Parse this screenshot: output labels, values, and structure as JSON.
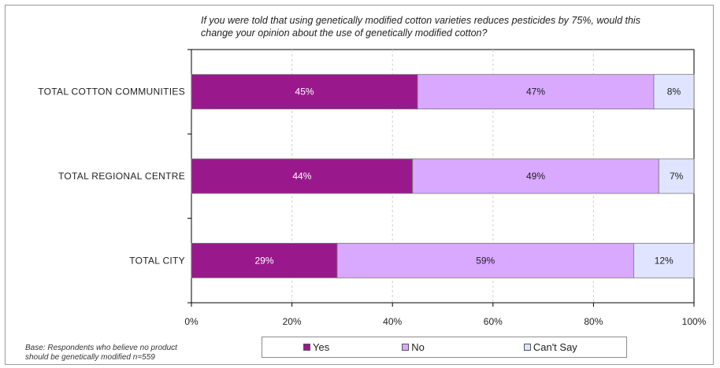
{
  "chart_data": {
    "type": "bar",
    "orientation": "horizontal",
    "stacked": true,
    "title": "If you were told that using genetically modified cotton varieties reduces pesticides by 75%, would this change your opinion about the use of genetically modified cotton?",
    "categories": [
      "TOTAL COTTON COMMUNITIES",
      "TOTAL REGIONAL CENTRE",
      "TOTAL CITY"
    ],
    "series": [
      {
        "name": "Yes",
        "values": [
          45,
          44,
          29
        ],
        "labels": [
          "45%",
          "44%",
          "29%"
        ],
        "color": "#99198c",
        "label_color": "#ffffff"
      },
      {
        "name": "No",
        "values": [
          47,
          49,
          59
        ],
        "labels": [
          "47%",
          "49%",
          "59%"
        ],
        "color": "#d9a8ff",
        "label_color": "#222222"
      },
      {
        "name": "Can't Say",
        "values": [
          8,
          7,
          12
        ],
        "labels": [
          "8%",
          "7%",
          "12%"
        ],
        "color": "#e0e4ff",
        "label_color": "#222222"
      }
    ],
    "xlim": [
      0,
      100
    ],
    "xticks": [
      0,
      20,
      40,
      60,
      80,
      100
    ],
    "xtick_labels": [
      "0%",
      "20%",
      "40%",
      "60%",
      "80%",
      "100%"
    ],
    "grid": true,
    "legend_position": "bottom"
  },
  "footnote": {
    "line1": "Base: Respondents who believe no product",
    "line2": "should be genetically modified n=559"
  }
}
